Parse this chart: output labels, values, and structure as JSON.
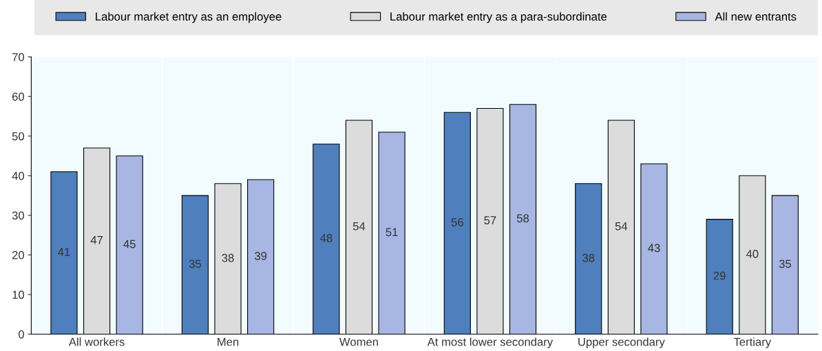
{
  "chart_data": {
    "type": "bar",
    "categories": [
      "All workers",
      "Men",
      "Women",
      "At most lower secondary",
      "Upper secondary",
      "Tertiary"
    ],
    "series": [
      {
        "name": "Labour market entry as an employee",
        "color": "#4f7fbc",
        "values": [
          41,
          35,
          48,
          56,
          38,
          29
        ]
      },
      {
        "name": "Labour market entry as a para-subordinate",
        "color": "#dcdcdc",
        "values": [
          47,
          38,
          54,
          57,
          54,
          40
        ]
      },
      {
        "name": "All new entrants",
        "color": "#a7b6e2",
        "values": [
          45,
          39,
          51,
          58,
          43,
          35
        ]
      }
    ],
    "ylim": [
      0,
      70
    ],
    "yticks": [
      0,
      10,
      20,
      30,
      40,
      50,
      60,
      70
    ],
    "grid": false,
    "legend": "top",
    "data_labels": true
  }
}
